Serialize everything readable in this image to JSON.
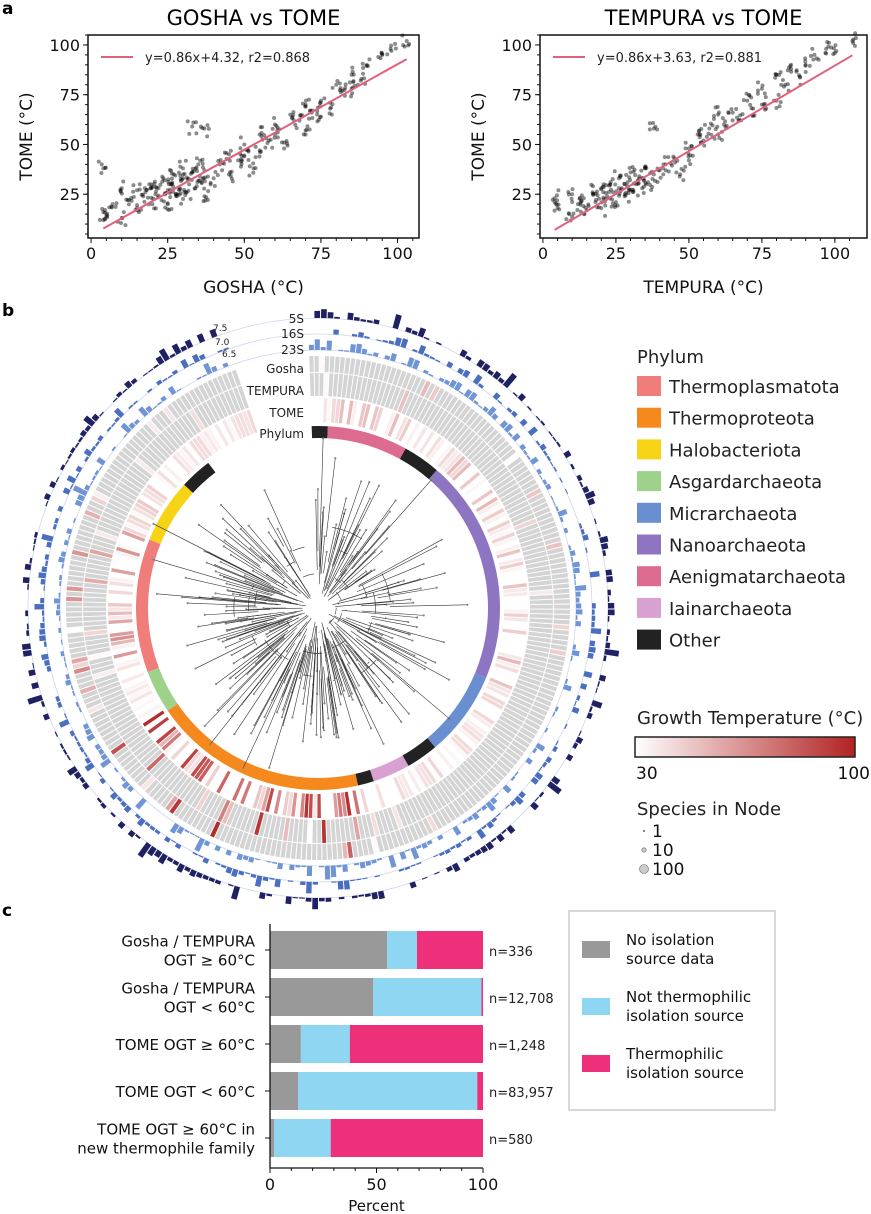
{
  "panels": {
    "a": "a",
    "b": "b",
    "c": "c"
  },
  "chart_data": [
    {
      "type": "scatter",
      "title": "GOSHA vs TOME",
      "xlabel": "GOSHA (°C)",
      "ylabel": "TOME (°C)",
      "xlim": [
        -1,
        107
      ],
      "ylim": [
        3,
        105
      ],
      "xticks": [
        "0",
        "25",
        "50",
        "75",
        "100"
      ],
      "yticks": [
        "25",
        "50",
        "75",
        "100"
      ],
      "xtick_values": [
        0,
        25,
        50,
        75,
        100
      ],
      "ytick_values": [
        25,
        50,
        75,
        100
      ],
      "fit": {
        "label": "y=0.86x+4.32, r2=0.868",
        "slope": 0.86,
        "intercept": 4.32,
        "x_range": [
          4,
          103
        ],
        "color": "#e0607e"
      },
      "legend_placement": "top-left",
      "points": [
        [
          4,
          38
        ],
        [
          4,
          16
        ],
        [
          4,
          12
        ],
        [
          7,
          20
        ],
        [
          10,
          13
        ],
        [
          10,
          28
        ],
        [
          12,
          22
        ],
        [
          15,
          18
        ],
        [
          15,
          27
        ],
        [
          17,
          24
        ],
        [
          19,
          30
        ],
        [
          20,
          20
        ],
        [
          21,
          25
        ],
        [
          22,
          28
        ],
        [
          23,
          22
        ],
        [
          24,
          32
        ],
        [
          25,
          27
        ],
        [
          25,
          20
        ],
        [
          26,
          30
        ],
        [
          27,
          35
        ],
        [
          28,
          24
        ],
        [
          29,
          28
        ],
        [
          30,
          33
        ],
        [
          30,
          38
        ],
        [
          31,
          26
        ],
        [
          32,
          30
        ],
        [
          33,
          36
        ],
        [
          34,
          28
        ],
        [
          35,
          40
        ],
        [
          36,
          31
        ],
        [
          37,
          24
        ],
        [
          37,
          37
        ],
        [
          40,
          33
        ],
        [
          42,
          40
        ],
        [
          45,
          45
        ],
        [
          45,
          35
        ],
        [
          48,
          42
        ],
        [
          50,
          50
        ],
        [
          50,
          44
        ],
        [
          53,
          38
        ],
        [
          55,
          55
        ],
        [
          55,
          47
        ],
        [
          58,
          52
        ],
        [
          60,
          60
        ],
        [
          60,
          55
        ],
        [
          63,
          48
        ],
        [
          65,
          65
        ],
        [
          68,
          62
        ],
        [
          70,
          70
        ],
        [
          70,
          57
        ],
        [
          72,
          66
        ],
        [
          75,
          72
        ],
        [
          75,
          64
        ],
        [
          78,
          68
        ],
        [
          80,
          80
        ],
        [
          82,
          77
        ],
        [
          85,
          85
        ],
        [
          85,
          78
        ],
        [
          88,
          82
        ],
        [
          90,
          90
        ],
        [
          95,
          95
        ],
        [
          98,
          97
        ],
        [
          103,
          102
        ],
        [
          33,
          59
        ],
        [
          37,
          58
        ]
      ]
    },
    {
      "type": "scatter",
      "title": "TEMPURA vs TOME",
      "xlabel": "TEMPURA (°C)",
      "ylabel": "TOME (°C)",
      "xlim": [
        -1,
        111
      ],
      "ylim": [
        3,
        105
      ],
      "xticks": [
        "0",
        "25",
        "50",
        "75",
        "100"
      ],
      "yticks": [
        "25",
        "50",
        "75",
        "100"
      ],
      "xtick_values": [
        0,
        25,
        50,
        75,
        100
      ],
      "ytick_values": [
        25,
        50,
        75,
        100
      ],
      "fit": {
        "label": "y=0.86x+3.63, r2=0.881",
        "slope": 0.86,
        "intercept": 3.63,
        "x_range": [
          4,
          106
        ],
        "color": "#e0607e"
      },
      "legend_placement": "top-left",
      "points": [
        [
          4,
          23
        ],
        [
          5,
          18
        ],
        [
          9,
          15
        ],
        [
          10,
          25
        ],
        [
          12,
          20
        ],
        [
          14,
          23
        ],
        [
          15,
          17
        ],
        [
          17,
          26
        ],
        [
          18,
          21
        ],
        [
          20,
          28
        ],
        [
          20,
          18
        ],
        [
          22,
          24
        ],
        [
          23,
          30
        ],
        [
          24,
          26
        ],
        [
          25,
          21
        ],
        [
          26,
          33
        ],
        [
          27,
          28
        ],
        [
          28,
          24
        ],
        [
          29,
          31
        ],
        [
          30,
          36
        ],
        [
          31,
          27
        ],
        [
          32,
          30
        ],
        [
          33,
          34
        ],
        [
          34,
          28
        ],
        [
          35,
          38
        ],
        [
          36,
          31
        ],
        [
          38,
          58
        ],
        [
          38,
          35
        ],
        [
          40,
          37
        ],
        [
          42,
          40
        ],
        [
          45,
          43
        ],
        [
          47,
          35
        ],
        [
          50,
          48
        ],
        [
          50,
          42
        ],
        [
          53,
          55
        ],
        [
          55,
          52
        ],
        [
          57,
          58
        ],
        [
          60,
          65
        ],
        [
          60,
          55
        ],
        [
          62,
          60
        ],
        [
          65,
          66
        ],
        [
          67,
          62
        ],
        [
          70,
          72
        ],
        [
          72,
          68
        ],
        [
          75,
          78
        ],
        [
          75,
          70
        ],
        [
          80,
          72
        ],
        [
          80,
          85
        ],
        [
          83,
          80
        ],
        [
          85,
          88
        ],
        [
          88,
          84
        ],
        [
          90,
          90
        ],
        [
          93,
          95
        ],
        [
          97,
          98
        ],
        [
          100,
          96
        ],
        [
          106,
          102
        ]
      ]
    },
    {
      "type": "circular-tree",
      "track_labels": [
        "5S",
        "16S",
        "23S",
        "Gosha",
        "TEMPURA",
        "TOME",
        "Phylum"
      ],
      "scale_labels": [
        "7.5",
        "7.0",
        "6.5"
      ],
      "phylum_legend": {
        "title": "Phylum",
        "items": [
          {
            "name": "Thermoplasmatota",
            "color": "#f07d7a"
          },
          {
            "name": "Thermoproteota",
            "color": "#f5891e"
          },
          {
            "name": "Halobacteriota",
            "color": "#f7d316"
          },
          {
            "name": "Asgardarchaeota",
            "color": "#9ed18a"
          },
          {
            "name": "Micrarchaeota",
            "color": "#6a8fd1"
          },
          {
            "name": "Nanoarchaeota",
            "color": "#8e75c2"
          },
          {
            "name": "Aenigmatarchaeota",
            "color": "#dd6b8f"
          },
          {
            "name": "Iainarchaeota",
            "color": "#d8a1d2"
          },
          {
            "name": "Other",
            "color": "#222222"
          }
        ]
      },
      "phylum_arcs_clockwise_from_top": [
        {
          "phylum": "Other",
          "fraction": 0.015
        },
        {
          "phylum": "Aenigmatarchaeota",
          "fraction": 0.075
        },
        {
          "phylum": "Other",
          "fraction": 0.035
        },
        {
          "phylum": "Nanoarchaeota",
          "fraction": 0.21
        },
        {
          "phylum": "Micrarchaeota",
          "fraction": 0.08
        },
        {
          "phylum": "Other",
          "fraction": 0.03
        },
        {
          "phylum": "Iainarchaeota",
          "fraction": 0.035
        },
        {
          "phylum": "Other",
          "fraction": 0.015
        },
        {
          "phylum": "Thermoproteota",
          "fraction": 0.2
        },
        {
          "phylum": "Asgardarchaeota",
          "fraction": 0.04
        },
        {
          "phylum": "Thermoplasmatota",
          "fraction": 0.125
        },
        {
          "phylum": "Halobacteriota",
          "fraction": 0.06
        },
        {
          "phylum": "Other",
          "fraction": 0.03
        }
      ],
      "colorbar": {
        "title": "Growth Temperature (°C)",
        "min": "30",
        "max": "100",
        "colors": [
          "#ffffff",
          "#b22222"
        ]
      },
      "node_size_legend": {
        "title": "Species in Node",
        "items": [
          "1",
          "10",
          "100"
        ]
      },
      "colors": {
        "empty": "#d4d4d4",
        "rrna_5s": "#1f2163",
        "rrna_16s": "#4a6fc0",
        "rrna_23s": "#6f95d6",
        "branch": "#333333"
      }
    },
    {
      "type": "bar",
      "orientation": "horizontal-stacked",
      "categories": [
        "Gosha / TEMPURA\nOGT ≥ 60°C",
        "Gosha / TEMPURA\nOGT < 60°C",
        "TOME OGT ≥ 60°C",
        "TOME OGT < 60°C",
        "TOME OGT ≥ 60°C in\nnew thermophile family"
      ],
      "counts": [
        "n=336",
        "n=12,708",
        "n=1,248",
        "n=83,957",
        "n=580"
      ],
      "series": [
        {
          "name": "No isolation source data",
          "color": "#999999",
          "values": [
            55,
            48.5,
            14.5,
            13.3,
            2
          ]
        },
        {
          "name": "Not thermophilic isolation source",
          "color": "#8fd6f3",
          "values": [
            14,
            50.8,
            23,
            84,
            26.5
          ]
        },
        {
          "name": "Thermophilic isolation source",
          "color": "#ee2f7a",
          "values": [
            31,
            0.7,
            62.5,
            2.7,
            71.5
          ]
        }
      ],
      "xlabel": "Percent",
      "xlim": [
        0,
        100
      ],
      "xticks": [
        "0",
        "50",
        "100"
      ],
      "xtick_values": [
        0,
        50,
        100
      ],
      "legend_placement": "right"
    }
  ]
}
